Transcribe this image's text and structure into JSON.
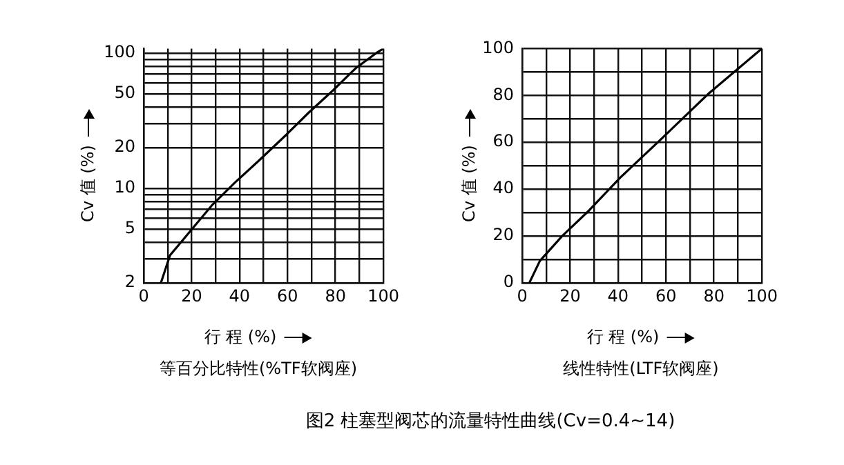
{
  "chart_data": [
    {
      "type": "line",
      "title": "等百分比特性(%TF软阀座)",
      "xlabel": "行 程 (%)",
      "ylabel": "Cv 值 (%)",
      "log": "y",
      "series": [
        {
          "color": "#000000",
          "x": [
            7.2,
            11,
            18,
            28.5,
            38,
            48,
            59.6,
            69,
            79,
            88.7,
            97,
            100
          ],
          "values": [
            2,
            3.2,
            4.5,
            7.5,
            11,
            16,
            25,
            36.5,
            53,
            78,
            100,
            108
          ]
        }
      ],
      "xlim": [
        0,
        100
      ],
      "xticks": [
        0,
        {
          "value": 10,
          "label": null
        },
        20,
        {
          "value": 30,
          "label": null
        },
        40,
        {
          "value": 50,
          "label": null
        },
        60,
        {
          "value": 70,
          "label": null
        },
        80,
        {
          "value": 90,
          "label": null
        },
        100
      ],
      "ylim": [
        2,
        108
      ],
      "yticks": [
        2,
        {
          "value": 3,
          "label": null
        },
        {
          "value": 4,
          "label": null
        },
        5,
        {
          "value": 6,
          "label": null
        },
        {
          "value": 7,
          "label": null
        },
        {
          "value": 8,
          "label": null
        },
        {
          "value": 9,
          "label": null
        },
        10,
        20,
        {
          "value": 30,
          "label": null
        },
        {
          "value": 40,
          "label": null
        },
        50,
        {
          "value": 60,
          "label": null
        },
        {
          "value": 70,
          "label": null
        },
        {
          "value": 80,
          "label": null
        },
        {
          "value": 90,
          "label": null
        },
        100
      ],
      "grid": true,
      "legend": false,
      "marker": "none",
      "line_style": "solid"
    },
    {
      "type": "line",
      "title": "线性特性(LTF软阀座)",
      "xlabel": "行 程 (%)",
      "ylabel": "Cv 值 (%)",
      "series": [
        {
          "color": "#000000",
          "x": [
            3,
            7.4,
            16.7,
            28,
            41,
            57.6,
            78,
            100
          ],
          "values": [
            0,
            9.4,
            20,
            31,
            45,
            61,
            81,
            100
          ]
        }
      ],
      "xlim": [
        0,
        100
      ],
      "xticks": [
        0,
        {
          "value": 10,
          "label": null
        },
        20,
        {
          "value": 30,
          "label": null
        },
        40,
        {
          "value": 50,
          "label": null
        },
        60,
        {
          "value": 70,
          "label": null
        },
        80,
        {
          "value": 90,
          "label": null
        },
        100
      ],
      "ylim": [
        0,
        100
      ],
      "yticks": [
        0,
        {
          "value": 10,
          "label": null
        },
        20,
        {
          "value": 30,
          "label": null
        },
        40,
        {
          "value": 50,
          "label": null
        },
        60,
        {
          "value": 70,
          "label": null
        },
        80,
        {
          "value": 90,
          "label": null
        },
        100
      ],
      "grid": true,
      "legend": false,
      "marker": "none",
      "line_style": "solid",
      "annotations": [
        "图2  柱塞型阀芯的流量特性曲线(Cv=0.4~14)"
      ]
    }
  ]
}
